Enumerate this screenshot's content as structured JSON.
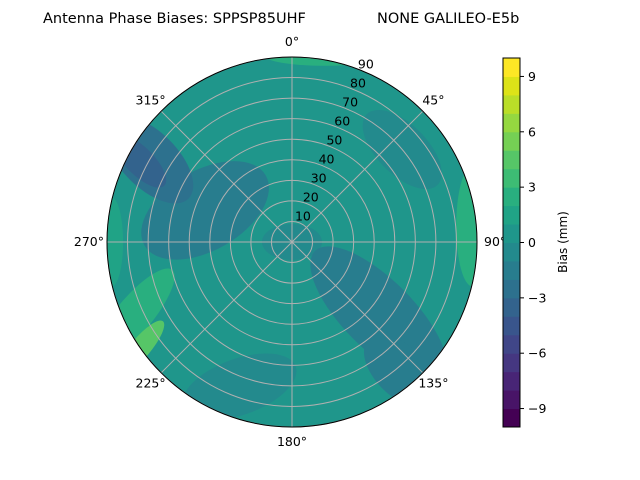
{
  "chart_data": {
    "type": "polar-contour",
    "title_left": "Antenna Phase Biases: SPPSP85UHF",
    "title_right": "NONE GALILEO-E5b",
    "angular_ticks": [
      "0°",
      "45°",
      "90°",
      "135°",
      "180°",
      "225°",
      "270°",
      "315°"
    ],
    "angular_direction": "clockwise, 0° at top",
    "radial_ticks": [
      "10",
      "20",
      "30",
      "40",
      "50",
      "60",
      "70",
      "80",
      "90"
    ],
    "radial_range": [
      0,
      90
    ],
    "grid": true,
    "colormap": "viridis",
    "colorbar": {
      "label": "Bias (mm)",
      "range": [
        -10,
        10
      ],
      "levels": 20,
      "ticks": [
        "−9",
        "−6",
        "−3",
        "0",
        "3",
        "6",
        "9"
      ],
      "tick_values": [
        -9,
        -6,
        -3,
        0,
        3,
        6,
        9
      ]
    },
    "field_summary": {
      "dominant_bias_mm": [
        -1,
        1
      ],
      "minimum_region": {
        "azimuth_deg": 295,
        "elevation_ring": 85,
        "bias_mm": -4
      },
      "maximum_region": {
        "azimuth_deg": 240,
        "elevation_ring": 88,
        "bias_mm": 5
      }
    }
  }
}
